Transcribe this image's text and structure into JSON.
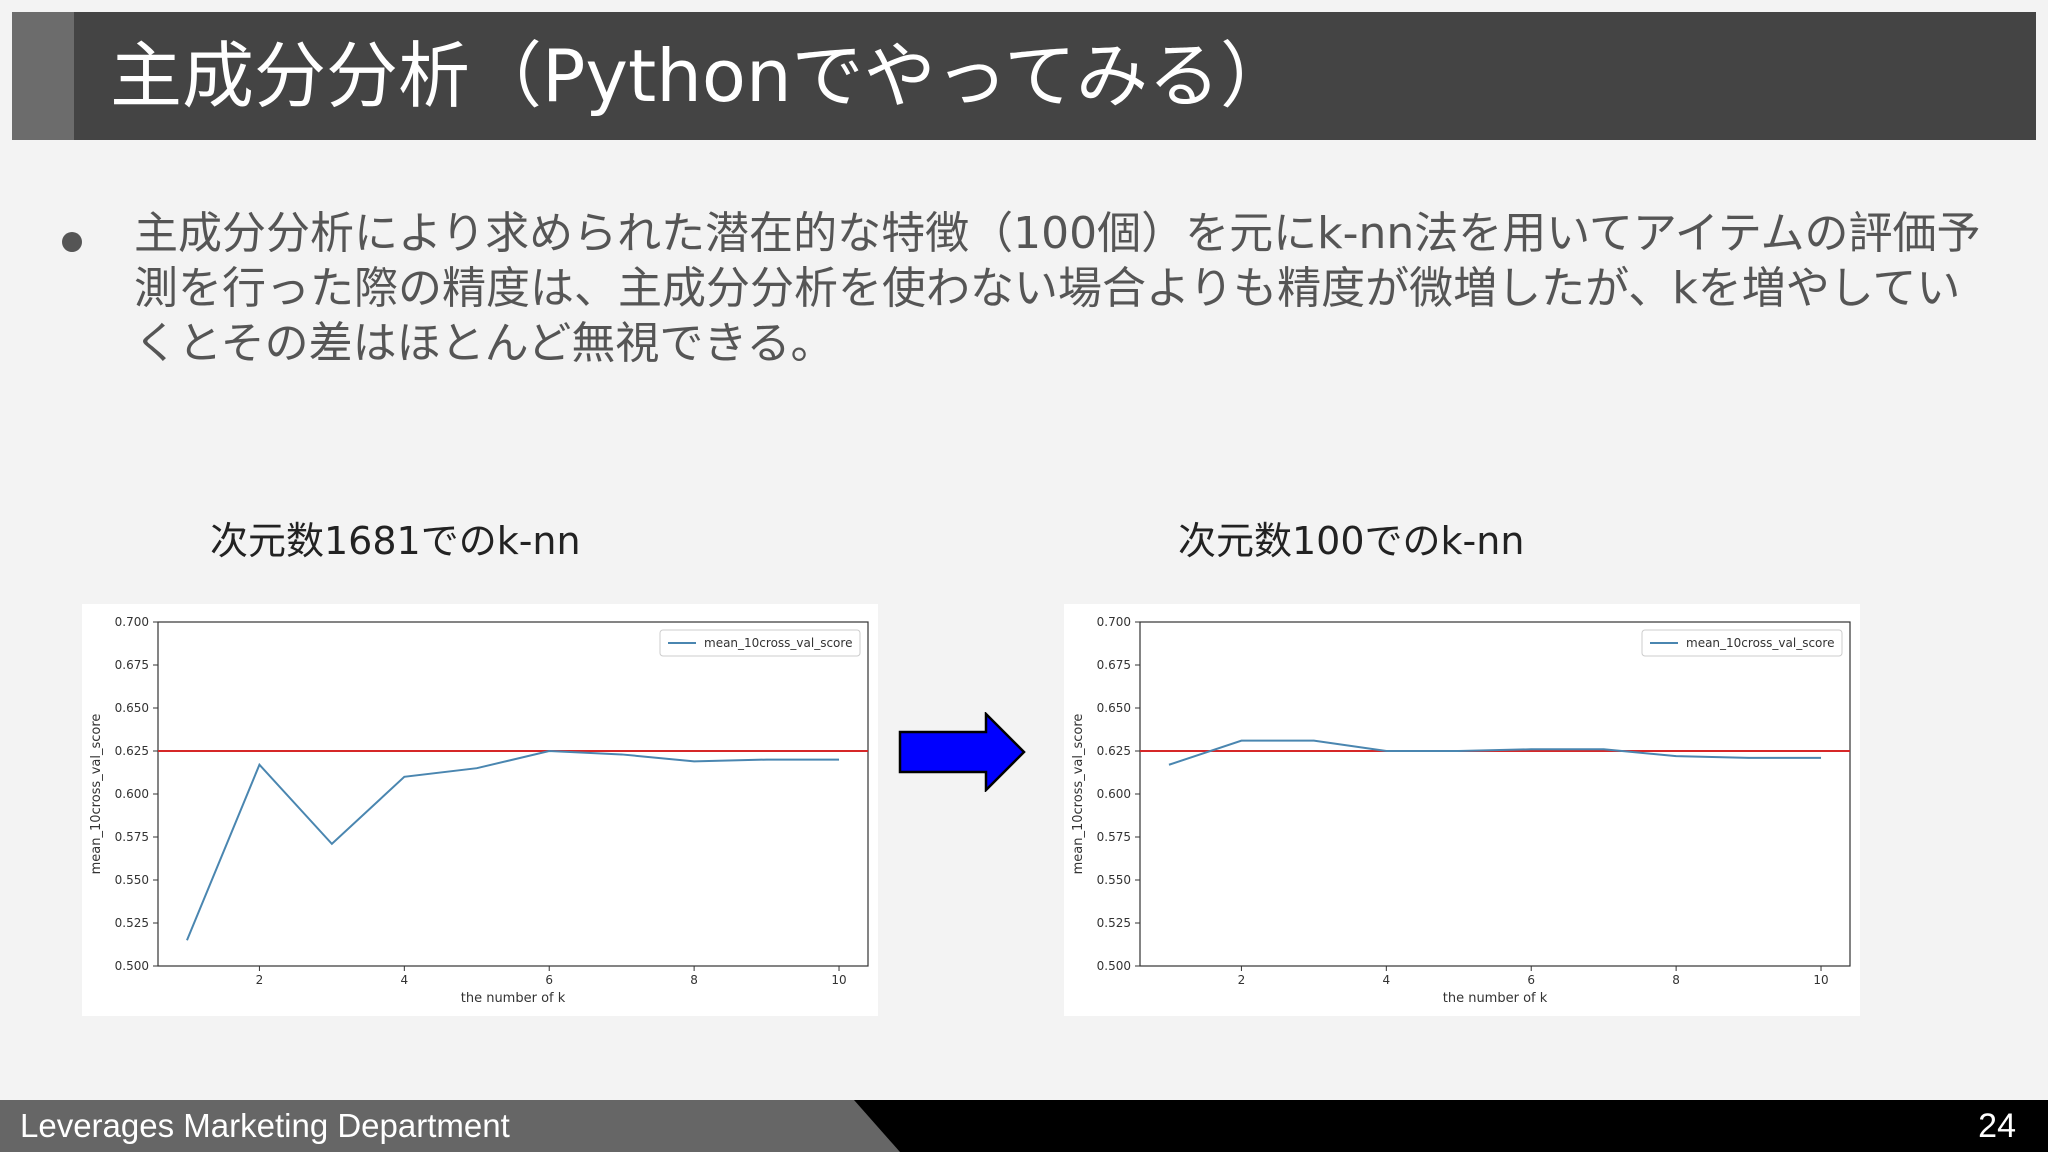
{
  "slide": {
    "title": "主成分分析（Pythonでやってみる）",
    "bullet": "主成分分析により求められた潜在的な特徴（100個）を元にk-nn法を用いてアイテムの評価予測を行った際の精度は、主成分分析を使わない場合よりも精度が微増したが、kを増やしていくとその差はほとんど無視できる。",
    "footer_department": "Leverages Marketing Department",
    "page_number": "24",
    "arrow_color": "#0000ff"
  },
  "chart_captions": [
    "次元数1681でのk-nn",
    "次元数100でのk-nn"
  ],
  "chart_data": [
    {
      "type": "line",
      "x": [
        1,
        2,
        3,
        4,
        5,
        6,
        7,
        8,
        9,
        10
      ],
      "series": [
        {
          "name": "mean_10cross_val_score",
          "values": [
            0.515,
            0.617,
            0.571,
            0.61,
            0.615,
            0.625,
            0.623,
            0.619,
            0.62,
            0.62
          ],
          "color": "#4a86b0"
        }
      ],
      "reference_line": {
        "y": 0.625,
        "color": "#d62728"
      },
      "xlabel": "the number of k",
      "ylabel": "mean_10cross_val_score",
      "xlim": [
        0.6,
        10.4
      ],
      "ylim": [
        0.5,
        0.7
      ],
      "xticks": [
        "2",
        "4",
        "6",
        "8",
        "10"
      ],
      "yticks": [
        "0.500",
        "0.525",
        "0.550",
        "0.575",
        "0.600",
        "0.625",
        "0.650",
        "0.675",
        "0.700"
      ],
      "legend": "top-right",
      "grid": false
    },
    {
      "type": "line",
      "x": [
        1,
        2,
        3,
        4,
        5,
        6,
        7,
        8,
        9,
        10
      ],
      "series": [
        {
          "name": "mean_10cross_val_score",
          "values": [
            0.617,
            0.631,
            0.631,
            0.625,
            0.625,
            0.626,
            0.626,
            0.622,
            0.621,
            0.621
          ],
          "color": "#4a86b0"
        }
      ],
      "reference_line": {
        "y": 0.625,
        "color": "#d62728"
      },
      "xlabel": "the number of k",
      "ylabel": "mean_10cross_val_score",
      "xlim": [
        0.6,
        10.4
      ],
      "ylim": [
        0.5,
        0.7
      ],
      "xticks": [
        "2",
        "4",
        "6",
        "8",
        "10"
      ],
      "yticks": [
        "0.500",
        "0.525",
        "0.550",
        "0.575",
        "0.600",
        "0.625",
        "0.650",
        "0.675",
        "0.700"
      ],
      "legend": "top-right",
      "grid": false
    }
  ]
}
